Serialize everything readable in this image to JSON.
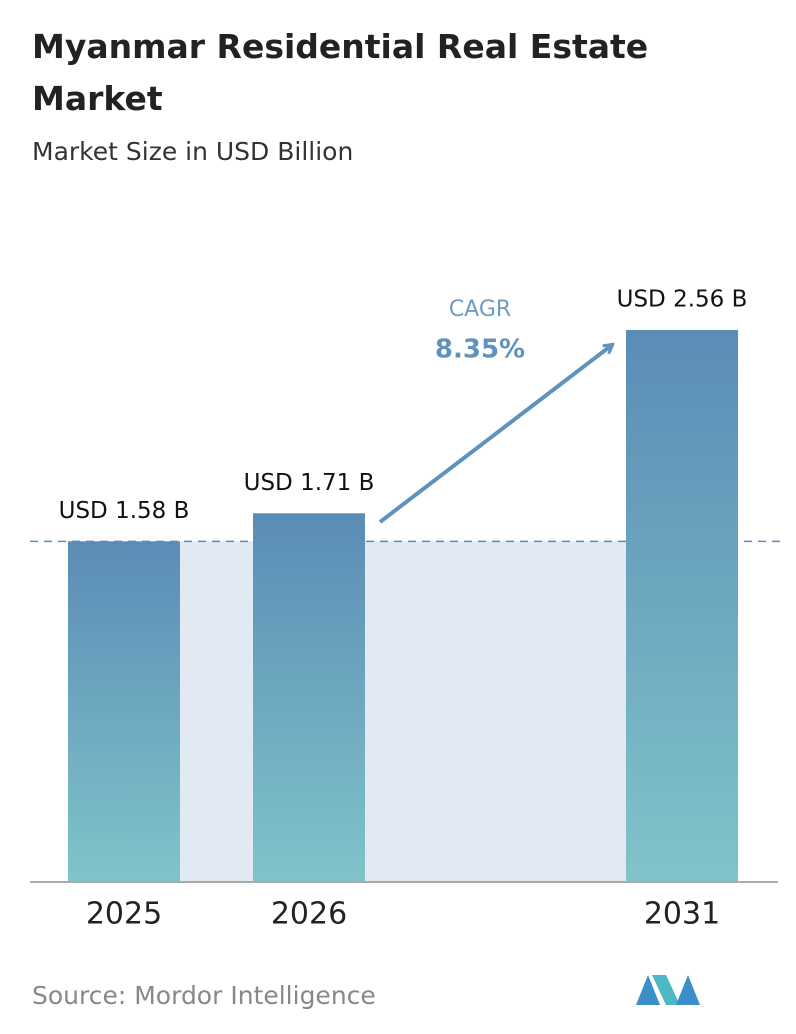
{
  "chart_data": {
    "type": "bar",
    "title": "Myanmar Residential Real Estate Market",
    "subtitle": "Market Size in USD Billion",
    "categories": [
      "2025",
      "2026",
      "2031"
    ],
    "values": [
      1.58,
      1.71,
      2.56
    ],
    "value_labels": [
      "USD 1.58 B",
      "USD 1.71 B",
      "USD 2.56 B"
    ],
    "annotations": [
      "CAGR",
      "8.35%"
    ],
    "source": "Source:  Mordor Intelligence",
    "color_top": "#5b8cb6",
    "color_bottom": "#80c4c9"
  }
}
